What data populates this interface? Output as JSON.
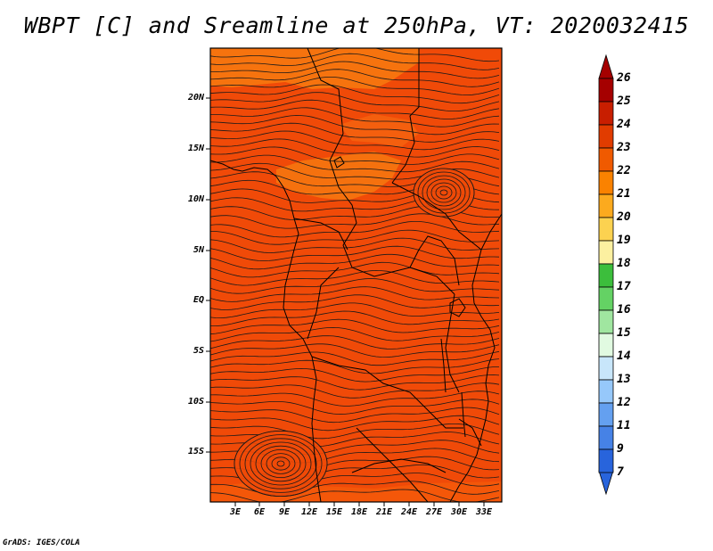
{
  "title": "WBPT [C] and Sreamline at 250hPa, VT: 2020032415",
  "footer": "GrADS: IGES/COLA",
  "map": {
    "lat_labels": [
      "20N",
      "15N",
      "10N",
      "5N",
      "EQ",
      "5S",
      "10S",
      "15S"
    ],
    "lon_labels": [
      "3E",
      "6E",
      "9E",
      "12E",
      "15E",
      "18E",
      "21E",
      "24E",
      "27E",
      "30E",
      "33E"
    ],
    "fill_color": "#f04a08",
    "light_patch_color": "#f6780f",
    "streamline_color": "#1a1a1a"
  },
  "colorbar": {
    "labels": [
      "26",
      "25",
      "24",
      "23",
      "22",
      "21",
      "20",
      "19",
      "18",
      "17",
      "16",
      "15",
      "14",
      "13",
      "12",
      "11",
      "9",
      "7"
    ],
    "colors": [
      "#a50000",
      "#c81e00",
      "#e13c00",
      "#f05a00",
      "#fa8200",
      "#fcaa1e",
      "#fcd250",
      "#fcf0a0",
      "#3cbe3c",
      "#64d264",
      "#a0e6a0",
      "#e1fae1",
      "#c8e6fa",
      "#96c8fa",
      "#64a0f0",
      "#4682e6",
      "#2864dc"
    ]
  }
}
